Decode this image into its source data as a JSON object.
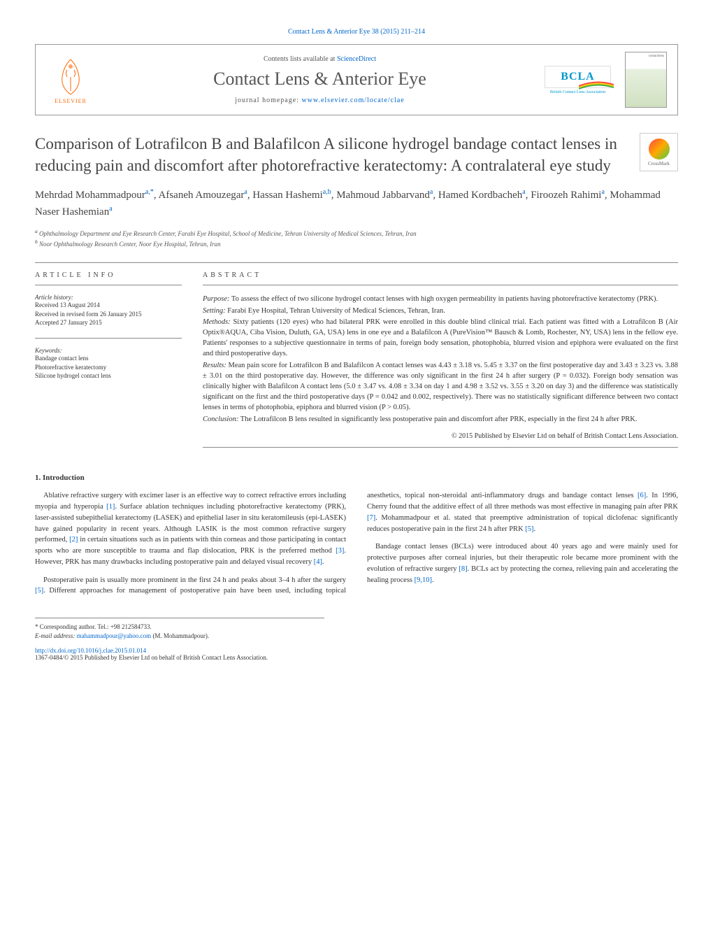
{
  "header": {
    "top_citation": "Contact Lens & Anterior Eye 38 (2015) 211–214",
    "contents_text": "Contents lists available at ",
    "contents_link": "ScienceDirect",
    "journal_name": "Contact Lens & Anterior Eye",
    "homepage_label": "journal homepage: ",
    "homepage_url": "www.elsevier.com/locate/clae",
    "elsevier_label": "ELSEVIER",
    "bcla_label": "BCLA",
    "bcla_sub": "British Contact Lens Association",
    "cover_title": "contactlens",
    "crossmark_label": "CrossMark"
  },
  "colors": {
    "link": "#0066cc",
    "elsevier_orange": "#ff6600",
    "bcla_blue": "#0099cc",
    "text": "#333333",
    "rule": "#888888"
  },
  "title": "Comparison of Lotrafilcon B and Balafilcon A silicone hydrogel bandage contact lenses in reducing pain and discomfort after photorefractive keratectomy: A contralateral eye study",
  "authors_html": "Mehrdad Mohammadpour<sup>a,*</sup>, Afsaneh Amouzegar<sup>a</sup>, Hassan Hashemi<sup>a,b</sup>, Mahmoud Jabbarvand<sup>a</sup>, Hamed Kordbacheh<sup>a</sup>, Firoozeh Rahimi<sup>a</sup>, Mohammad Naser Hashemian<sup>a</sup>",
  "affiliations": [
    "a Ophthalmology Department and Eye Research Center, Farabi Eye Hospital, School of Medicine, Tehran University of Medical Sciences, Tehran, Iran",
    "b Noor Ophthalmology Research Center, Noor Eye Hospital, Tehran, Iran"
  ],
  "article_info": {
    "heading": "ARTICLE INFO",
    "history_label": "Article history:",
    "history": [
      "Received 13 August 2014",
      "Received in revised form 26 January 2015",
      "Accepted 27 January 2015"
    ],
    "keywords_label": "Keywords:",
    "keywords": [
      "Bandage contact lens",
      "Photorefractive keratectomy",
      "Silicone hydrogel contact lens"
    ]
  },
  "abstract": {
    "heading": "ABSTRACT",
    "purpose_label": "Purpose:",
    "purpose": " To assess the effect of two silicone hydrogel contact lenses with high oxygen permeability in patients having photorefractive keratectomy (PRK).",
    "setting_label": "Setting:",
    "setting": " Farabi Eye Hospital, Tehran University of Medical Sciences, Tehran, Iran.",
    "methods_label": "Methods:",
    "methods": " Sixty patients (120 eyes) who had bilateral PRK were enrolled in this double blind clinical trial. Each patient was fitted with a Lotrafilcon B (Air Optix®AQUA, Ciba Vision, Duluth, GA, USA) lens in one eye and a Balafilcon A (PureVision™ Bausch & Lomb, Rochester, NY, USA) lens in the fellow eye. Patients' responses to a subjective questionnaire in terms of pain, foreign body sensation, photophobia, blurred vision and epiphora were evaluated on the first and third postoperative days.",
    "results_label": "Results:",
    "results": " Mean pain score for Lotrafilcon B and Balafilcon A contact lenses was 4.43 ± 3.18 vs. 5.45 ± 3.37 on the first postoperative day and 3.43 ± 3.23 vs. 3.88 ± 3.01 on the third postoperative day. However, the difference was only significant in the first 24 h after surgery (P = 0.032). Foreign body sensation was clinically higher with Balafilcon A contact lens (5.0 ± 3.47 vs. 4.08 ± 3.34 on day 1 and 4.98 ± 3.52 vs. 3.55 ± 3.20 on day 3) and the difference was statistically significant on the first and the third postoperative days (P = 0.042 and 0.002, respectively). There was no statistically significant difference between two contact lenses in terms of photophobia, epiphora and blurred vision (P > 0.05).",
    "conclusion_label": "Conclusion:",
    "conclusion": " The Lotrafilcon B lens resulted in significantly less postoperative pain and discomfort after PRK, especially in the first 24 h after PRK.",
    "copyright": "© 2015 Published by Elsevier Ltd on behalf of British Contact Lens Association."
  },
  "introduction": {
    "heading": "1. Introduction",
    "paragraphs": [
      "Ablative refractive surgery with excimer laser is an effective way to correct refractive errors including myopia and hyperopia [1]. Surface ablation techniques including photorefractive keratectomy (PRK), laser-assisted subepithelial keratectomy (LASEK) and epithelial laser in situ keratomileusis (epi-LASEK) have gained popularity in recent years. Although LASIK is the most common refractive surgery performed, [2] in certain situations such as in patients with thin corneas and those participating in contact sports who are more susceptible to trauma and flap dislocation, PRK is the preferred method [3]. However, PRK has many drawbacks including postoperative pain and delayed visual recovery [4].",
      "Postoperative pain is usually more prominent in the first 24 h and peaks about 3–4 h after the surgery [5]. Different approaches for management of postoperative pain have been used, including topical anesthetics, topical non-steroidal anti-inflammatory drugs and bandage contact lenses [6]. In 1996, Cherry found that the additive effect of all three methods was most effective in managing pain after PRK [7]. Mohammadpour et al. stated that preemptive administration of topical diclofenac significantly reduces postoperative pain in the first 24 h after PRK [5].",
      "Bandage contact lenses (BCLs) were introduced about 40 years ago and were mainly used for protective purposes after corneal injuries, but their therapeutic role became more prominent with the evolution of refractive surgery [8]. BCLs act by protecting the cornea, relieving pain and accelerating the healing process [9,10]."
    ]
  },
  "footer": {
    "corresponding": "* Corresponding author. Tel.: +98 212584733.",
    "email_label": "E-mail address: ",
    "email": "mahammadpour@yahoo.com",
    "email_suffix": " (M. Mohammadpour).",
    "doi": "http://dx.doi.org/10.1016/j.clae.2015.01.014",
    "issn": "1367-0484/© 2015 Published by Elsevier Ltd on behalf of British Contact Lens Association."
  }
}
